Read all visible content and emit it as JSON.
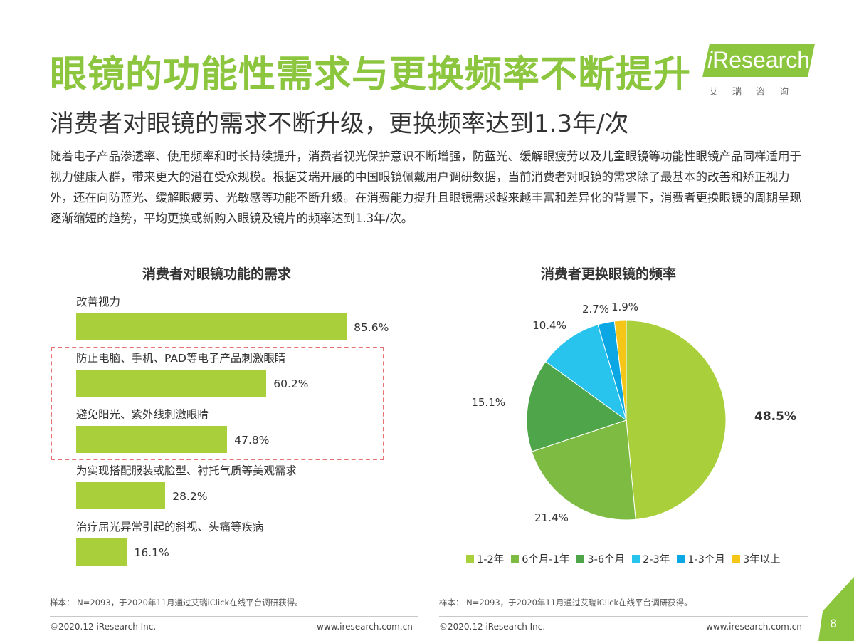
{
  "header": {
    "title": "眼镜的功能性需求与更换频率不断提升",
    "subtitle": "消费者对眼镜的需求不断升级，更换频率达到1.3年/次",
    "paragraph": "随着电子产品渗透率、使用频率和时长持续提升，消费者视光保护意识不断增强，防蓝光、缓解眼疲劳以及儿童眼镜等功能性眼镜产品同样适用于视力健康人群，带来更大的潜在受众规模。根据艾瑞开展的中国眼镜佩戴用户调研数据，当前消费者对眼镜的需求除了最基本的改善和矫正视力外，还在向防蓝光、缓解眼疲劳、光敏感等功能不断升级。在消费能力提升且眼镜需求越来越丰富和差异化的背景下，消费者更换眼镜的周期呈现逐渐缩短的趋势，平均更换或新购入眼镜及镜片的频率达到1.3年/次。"
  },
  "logo": {
    "i": "i",
    "name": "Research",
    "cn": "艾瑞咨询",
    "color": "#8cc63f"
  },
  "chart_data": [
    {
      "type": "bar",
      "title": "消费者对眼镜功能的需求",
      "categories": [
        "改善视力",
        "防止电脑、手机、PAD等电子产品刺激眼睛",
        "避免阳光、紫外线刺激眼睛",
        "为实现搭配服装或脸型、衬托气质等美观需求",
        "治疗屈光异常引起的斜视、头痛等疾病"
      ],
      "values": [
        85.6,
        60.2,
        47.8,
        28.2,
        16.1
      ],
      "value_labels": [
        "85.6%",
        "60.2%",
        "47.8%",
        "28.2%",
        "16.1%"
      ],
      "unit": "%",
      "orientation": "horizontal",
      "color": "#a9cf3b",
      "highlighted_categories": [
        1,
        2
      ],
      "highlight_color": "#e57373"
    },
    {
      "type": "pie",
      "title": "消费者更换眼镜的频率",
      "labels": [
        "1-2年",
        "6个月-1年",
        "3-6个月",
        "2-3年",
        "1-3个月",
        "3年以上"
      ],
      "values": [
        48.5,
        21.4,
        15.1,
        10.4,
        2.7,
        1.9
      ],
      "value_labels": [
        "48.5%",
        "21.4%",
        "15.1%",
        "10.4%",
        "2.7%",
        "1.9%"
      ],
      "colors": [
        "#a9cf3b",
        "#7dbb42",
        "#4fa54a",
        "#29c4ee",
        "#0ba6e4",
        "#f5c518"
      ],
      "legend_position": "bottom"
    }
  ],
  "notes": {
    "left": "样本： N=2093，于2020年11月通过艾瑞iClick在线平台调研获得。",
    "right": "样本： N=2093，于2020年11月通过艾瑞iClick在线平台调研获得。"
  },
  "footer": {
    "copyright": "©2020.12 iResearch Inc.",
    "website": "www.iresearch.com.cn",
    "page_number": "8",
    "accent_color": "#8cc63f"
  }
}
